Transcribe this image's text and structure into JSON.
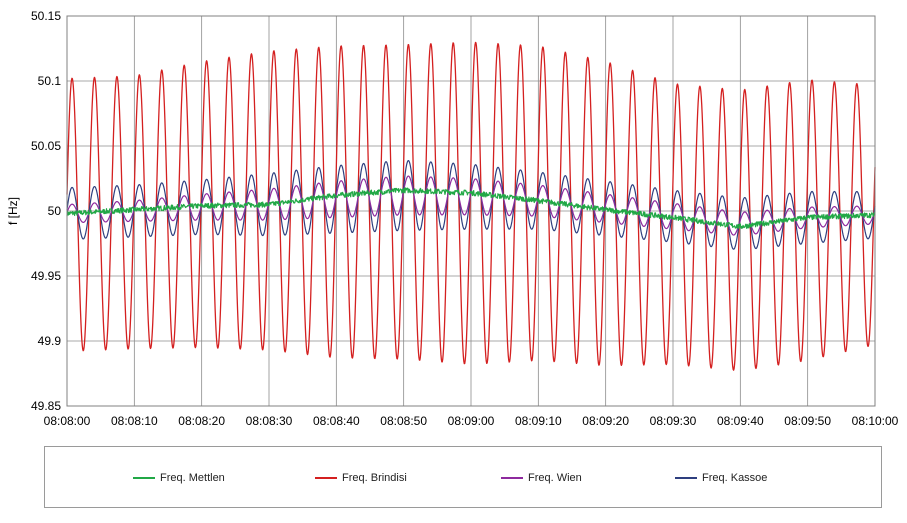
{
  "chart_data": {
    "type": "line",
    "title": "",
    "xlabel": "",
    "ylabel": "f [Hz]",
    "xlim": [
      "08:08:00",
      "08:10:00"
    ],
    "ylim": [
      49.85,
      50.15
    ],
    "x_ticks": [
      "08:08:00",
      "08:08:10",
      "08:08:20",
      "08:08:30",
      "08:08:40",
      "08:08:50",
      "08:09:00",
      "08:09:10",
      "08:09:20",
      "08:09:30",
      "08:09:40",
      "08:09:50",
      "08:10:00"
    ],
    "y_ticks": [
      "49.85",
      "49.9",
      "49.95",
      "50",
      "50.05",
      "50.1",
      "50.15"
    ],
    "grid": true,
    "legend_position": "bottom",
    "x_unit": "time (hh:mm:ss)",
    "sample_times": [
      "08:08:00",
      "08:08:10",
      "08:08:20",
      "08:08:30",
      "08:08:40",
      "08:08:50",
      "08:09:00",
      "08:09:10",
      "08:09:20",
      "08:09:30",
      "08:09:40",
      "08:09:50",
      "08:10:00"
    ],
    "series": [
      {
        "name": "Freq. Mettlen",
        "color": "#21a846",
        "kind": "drift",
        "values": [
          49.998,
          50.001,
          50.004,
          50.005,
          50.012,
          50.016,
          50.014,
          50.008,
          50.001,
          49.995,
          49.988,
          49.995,
          49.997
        ]
      },
      {
        "name": "Freq. Brindisi",
        "color": "#d42020",
        "kind": "oscillation",
        "oscillation_period_s": 3.33,
        "center": [
          49.997,
          49.999,
          50.005,
          50.008,
          50.007,
          50.007,
          50.006,
          50.006,
          49.998,
          49.99,
          49.985,
          49.993,
          49.997
        ],
        "amplitude": [
          0.105,
          0.105,
          0.11,
          0.115,
          0.12,
          0.121,
          0.124,
          0.121,
          0.117,
          0.108,
          0.108,
          0.108,
          0.1
        ]
      },
      {
        "name": "Freq. Wien",
        "color": "#8e2a9e",
        "kind": "oscillation",
        "oscillation_period_s": 3.33,
        "center": [
          49.998,
          50.0,
          50.003,
          50.005,
          50.009,
          50.012,
          50.011,
          50.008,
          50.002,
          49.996,
          49.99,
          49.995,
          49.997
        ],
        "amplitude": [
          0.007,
          0.008,
          0.01,
          0.012,
          0.014,
          0.015,
          0.014,
          0.012,
          0.011,
          0.01,
          0.009,
          0.008,
          0.007
        ]
      },
      {
        "name": "Freq. Kassoe",
        "color": "#2e3f7f",
        "kind": "oscillation",
        "oscillation_period_s": 3.33,
        "center": [
          49.998,
          50.0,
          50.003,
          50.005,
          50.009,
          50.012,
          50.011,
          50.008,
          50.002,
          49.996,
          49.99,
          49.995,
          49.997
        ],
        "amplitude": [
          0.02,
          0.02,
          0.021,
          0.024,
          0.026,
          0.027,
          0.025,
          0.022,
          0.021,
          0.02,
          0.02,
          0.02,
          0.018
        ]
      }
    ]
  }
}
